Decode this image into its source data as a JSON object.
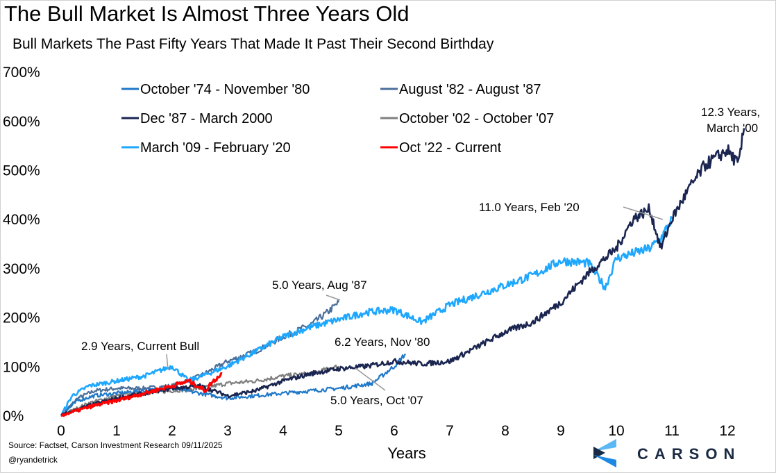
{
  "title": "The Bull Market Is Almost Three Years Old",
  "subtitle": "Bull Markets The Past Fifty Years That Made It Past Their Second Birthday",
  "source": "Source: Factset, Carson Investment Research 09/11/2025",
  "handle": "@ryandetrick",
  "logo_text": "CARSON",
  "chart_data": {
    "type": "line",
    "title": "The Bull Market Is Almost Three Years Old",
    "xlabel": "Years",
    "ylabel": "",
    "xlim": [
      0,
      12.5
    ],
    "ylim": [
      0,
      700
    ],
    "x_ticks": [
      "0",
      "1",
      "2",
      "3",
      "4",
      "5",
      "6",
      "7",
      "8",
      "9",
      "10",
      "11",
      "12"
    ],
    "y_ticks": [
      "0%",
      "100%",
      "200%",
      "300%",
      "400%",
      "500%",
      "600%",
      "700%"
    ],
    "legend_placement": "top-left",
    "series": [
      {
        "name": "October '74 - November '80",
        "color": "#1f78c8",
        "width": 2.2,
        "x": [
          0,
          0.3,
          0.6,
          1,
          1.5,
          2,
          2.5,
          3,
          3.5,
          4,
          4.5,
          5,
          5.3,
          5.6,
          6,
          6.2
        ],
        "y": [
          0,
          30,
          40,
          45,
          50,
          55,
          45,
          35,
          40,
          45,
          50,
          55,
          60,
          65,
          100,
          125
        ]
      },
      {
        "name": "August '82 - August '87",
        "color": "#4a6f9a",
        "width": 2.2,
        "x": [
          0,
          0.3,
          0.6,
          1,
          1.5,
          2,
          2.5,
          3,
          3.5,
          4,
          4.5,
          4.8,
          5
        ],
        "y": [
          0,
          35,
          50,
          55,
          55,
          60,
          80,
          110,
          130,
          160,
          185,
          210,
          230
        ]
      },
      {
        "name": "Dec '87 - March 2000",
        "color": "#1a2550",
        "width": 2.6,
        "x": [
          0,
          0.5,
          1,
          1.5,
          2,
          2.5,
          3,
          3.5,
          4,
          4.5,
          5,
          5.5,
          6,
          6.5,
          7,
          7.5,
          8,
          8.5,
          9,
          9.5,
          10,
          10.3,
          10.6,
          10.8,
          11,
          11.3,
          11.6,
          12,
          12.2,
          12.3
        ],
        "y": [
          0,
          20,
          35,
          45,
          55,
          60,
          40,
          50,
          70,
          85,
          95,
          100,
          110,
          105,
          110,
          140,
          170,
          190,
          230,
          290,
          340,
          400,
          420,
          340,
          400,
          460,
          510,
          540,
          510,
          585
        ]
      },
      {
        "name": "October '02 - October '07",
        "color": "#7f7f7f",
        "width": 2.2,
        "x": [
          0,
          0.5,
          1,
          1.5,
          2,
          2.5,
          3,
          3.5,
          4,
          4.5,
          5
        ],
        "y": [
          0,
          25,
          40,
          45,
          50,
          55,
          65,
          70,
          80,
          85,
          100
        ]
      },
      {
        "name": "March '09 - February '20",
        "color": "#1ea7ff",
        "width": 2.6,
        "x": [
          0,
          0.2,
          0.5,
          1,
          1.5,
          2,
          2.3,
          3,
          3.5,
          4,
          4.5,
          5,
          5.5,
          6,
          6.5,
          7,
          7.5,
          8,
          8.5,
          9,
          9.5,
          9.8,
          10,
          10.3,
          10.6,
          10.8,
          11
        ],
        "y": [
          0,
          40,
          60,
          70,
          80,
          100,
          70,
          100,
          130,
          160,
          180,
          195,
          210,
          215,
          190,
          225,
          245,
          265,
          285,
          315,
          310,
          260,
          320,
          330,
          340,
          360,
          400
        ]
      },
      {
        "name": "Oct '22 - Current",
        "color": "#ff0000",
        "width": 3.2,
        "x": [
          0,
          0.3,
          0.6,
          1,
          1.5,
          2,
          2.3,
          2.6,
          2.7,
          2.9
        ],
        "y": [
          0,
          10,
          20,
          30,
          45,
          60,
          70,
          50,
          65,
          85
        ]
      }
    ],
    "annotations": [
      {
        "text": "12.3 Years,",
        "text2": "March '00"
      },
      {
        "text": "11.0 Years, Feb '20"
      },
      {
        "text": "5.0 Years, Aug '87"
      },
      {
        "text": "2.9 Years, Current Bull"
      },
      {
        "text": "6.2 Years, Nov '80"
      },
      {
        "text": "5.0 Years, Oct '07"
      }
    ]
  }
}
